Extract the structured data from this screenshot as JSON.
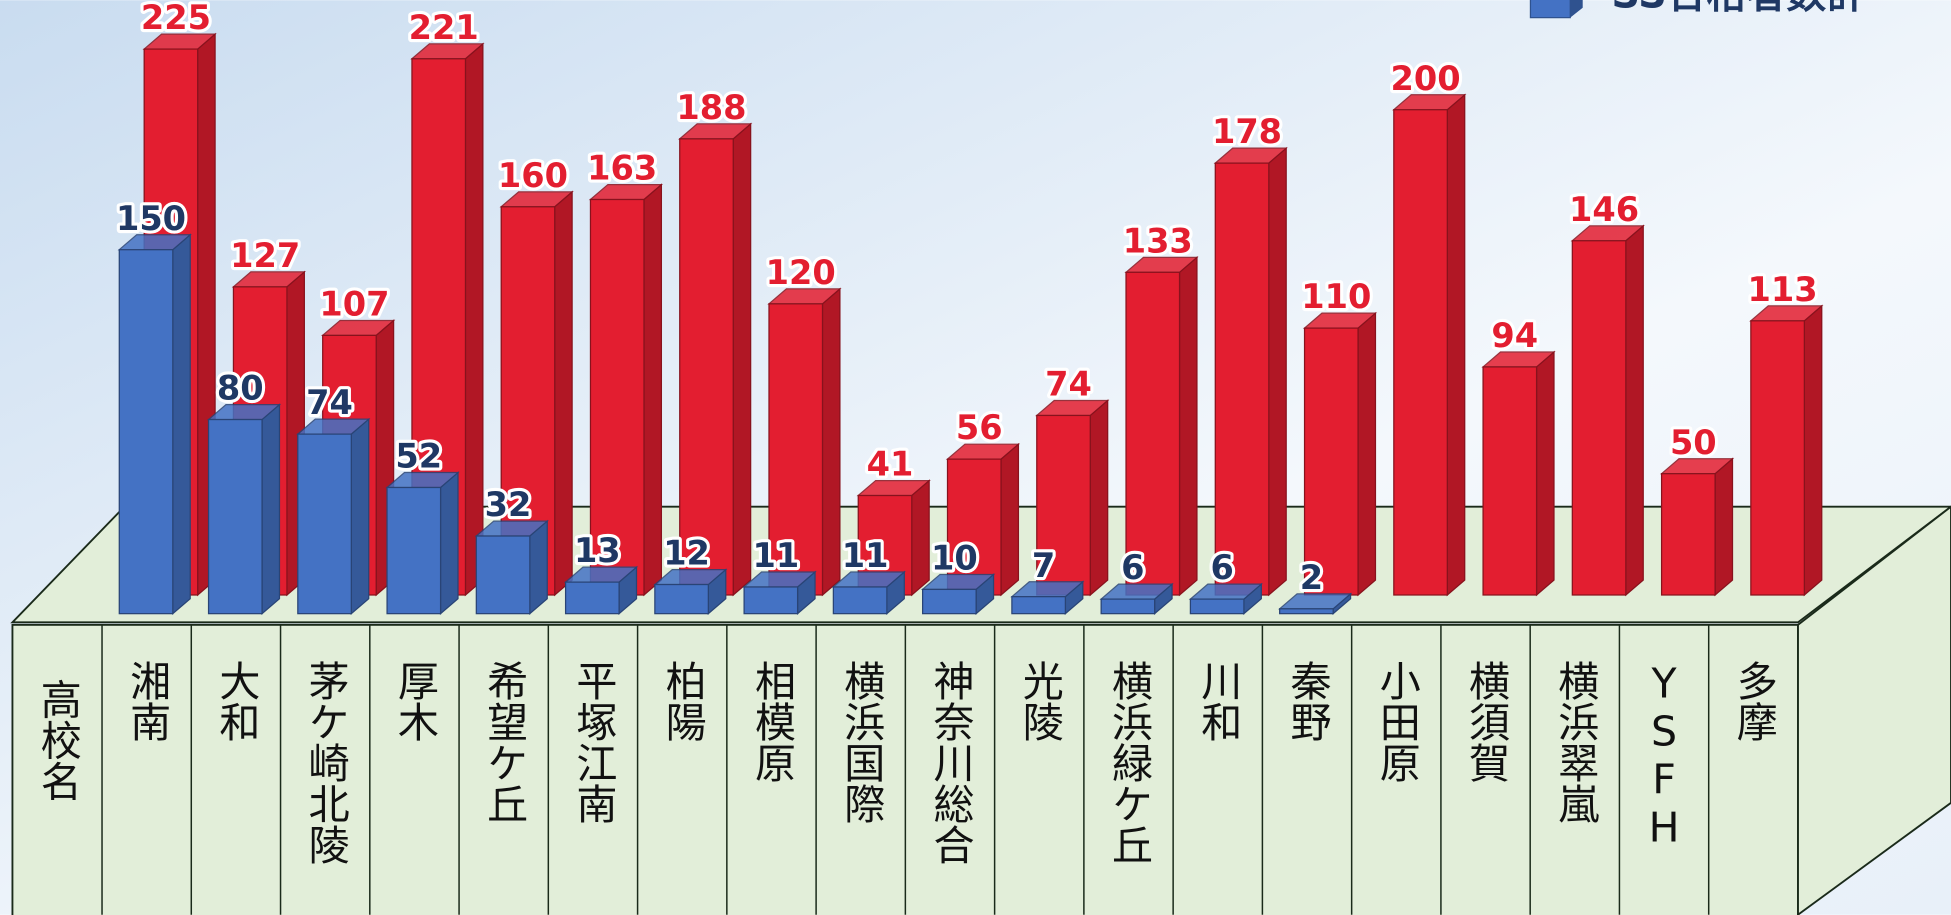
{
  "chart_data": {
    "type": "bar3d",
    "header": "高校名",
    "categories": [
      "湘南",
      "大和",
      "茅ケ崎北陵",
      "厚木",
      "希望ケ丘",
      "平塚江南",
      "柏陽",
      "相模原",
      "横浜国際",
      "神奈川総合",
      "光陵",
      "横浜緑ケ丘",
      "川和",
      "秦野",
      "小田原",
      "横須賀",
      "横浜翠嵐",
      "YSFH",
      "多摩"
    ],
    "series": [
      {
        "name": "SS合格者数計",
        "color": "#4472c4",
        "values": [
          150,
          80,
          74,
          52,
          32,
          13,
          12,
          11,
          11,
          10,
          7,
          6,
          6,
          2,
          null,
          null,
          null,
          null,
          null
        ]
      },
      {
        "color": "#e31e30",
        "values": [
          225,
          127,
          107,
          221,
          160,
          163,
          188,
          120,
          41,
          56,
          74,
          133,
          178,
          110,
          200,
          94,
          146,
          50,
          113
        ]
      }
    ]
  }
}
